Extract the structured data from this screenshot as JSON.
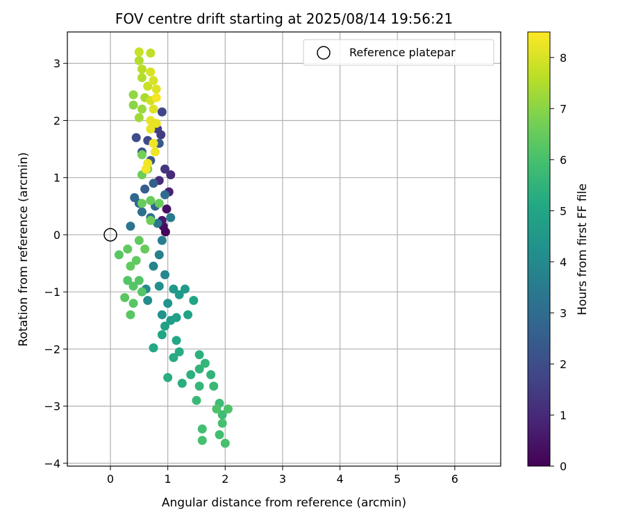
{
  "chart_data": {
    "type": "scatter",
    "title": "FOV centre drift starting at 2025/08/14 19:56:21",
    "xlabel": "Angular distance from reference (arcmin)",
    "ylabel": "Rotation from reference (arcmin)",
    "xlim": [
      -0.75,
      6.8
    ],
    "ylim": [
      -4.05,
      3.55
    ],
    "x_ticks": [
      0,
      1,
      2,
      3,
      4,
      5,
      6
    ],
    "y_ticks": [
      -4,
      -3,
      -2,
      -1,
      0,
      1,
      2,
      3
    ],
    "grid": true,
    "legend": {
      "placement": "upper-right",
      "entries": [
        {
          "label": "Reference platepar",
          "marker": "open-circle"
        }
      ]
    },
    "colorbar": {
      "label": "Hours from first FF file",
      "colormap": "viridis",
      "range": [
        0,
        8.5
      ],
      "ticks": [
        0,
        1,
        2,
        3,
        4,
        5,
        6,
        7,
        8
      ]
    },
    "reference_point": {
      "x": 0,
      "y": 0
    },
    "points": [
      {
        "x": 0.96,
        "y": 0.05,
        "h": 0.1
      },
      {
        "x": 0.92,
        "y": 0.15,
        "h": 0.3
      },
      {
        "x": 0.98,
        "y": 0.45,
        "h": 0.4
      },
      {
        "x": 0.9,
        "y": 0.25,
        "h": 0.6
      },
      {
        "x": 1.02,
        "y": 0.75,
        "h": 0.8
      },
      {
        "x": 1.05,
        "y": 1.05,
        "h": 1.0
      },
      {
        "x": 0.85,
        "y": 0.95,
        "h": 1.1
      },
      {
        "x": 0.95,
        "y": 1.15,
        "h": 1.3
      },
      {
        "x": 0.88,
        "y": 1.75,
        "h": 1.5
      },
      {
        "x": 0.82,
        "y": 1.85,
        "h": 1.6
      },
      {
        "x": 0.9,
        "y": 2.15,
        "h": 1.8
      },
      {
        "x": 0.65,
        "y": 1.65,
        "h": 1.9
      },
      {
        "x": 0.45,
        "y": 1.7,
        "h": 2.0
      },
      {
        "x": 0.55,
        "y": 1.45,
        "h": 2.2
      },
      {
        "x": 0.7,
        "y": 1.3,
        "h": 2.3
      },
      {
        "x": 0.85,
        "y": 1.6,
        "h": 2.4
      },
      {
        "x": 0.6,
        "y": 0.8,
        "h": 2.5
      },
      {
        "x": 0.75,
        "y": 0.9,
        "h": 2.6
      },
      {
        "x": 0.5,
        "y": 0.55,
        "h": 2.7
      },
      {
        "x": 0.78,
        "y": 0.5,
        "h": 2.8
      },
      {
        "x": 0.42,
        "y": 0.65,
        "h": 2.9
      },
      {
        "x": 0.95,
        "y": 0.7,
        "h": 3.0
      },
      {
        "x": 0.55,
        "y": 0.4,
        "h": 3.1
      },
      {
        "x": 0.7,
        "y": 0.3,
        "h": 3.2
      },
      {
        "x": 0.35,
        "y": 0.15,
        "h": 3.3
      },
      {
        "x": 0.82,
        "y": 0.2,
        "h": 3.4
      },
      {
        "x": 1.05,
        "y": 0.3,
        "h": 3.5
      },
      {
        "x": 0.9,
        "y": -0.1,
        "h": 3.6
      },
      {
        "x": 0.85,
        "y": -0.35,
        "h": 3.7
      },
      {
        "x": 0.75,
        "y": -0.55,
        "h": 3.8
      },
      {
        "x": 0.95,
        "y": -0.7,
        "h": 3.9
      },
      {
        "x": 0.62,
        "y": -0.95,
        "h": 4.0
      },
      {
        "x": 0.65,
        "y": -1.15,
        "h": 4.1
      },
      {
        "x": 0.85,
        "y": -0.9,
        "h": 4.2
      },
      {
        "x": 0.9,
        "y": -1.4,
        "h": 4.3
      },
      {
        "x": 1.0,
        "y": -1.2,
        "h": 4.4
      },
      {
        "x": 1.1,
        "y": -0.95,
        "h": 4.5
      },
      {
        "x": 1.2,
        "y": -1.05,
        "h": 4.6
      },
      {
        "x": 1.3,
        "y": -0.95,
        "h": 4.6
      },
      {
        "x": 1.05,
        "y": -1.5,
        "h": 4.7
      },
      {
        "x": 1.15,
        "y": -1.45,
        "h": 4.8
      },
      {
        "x": 0.95,
        "y": -1.6,
        "h": 4.8
      },
      {
        "x": 1.35,
        "y": -1.4,
        "h": 4.9
      },
      {
        "x": 1.45,
        "y": -1.15,
        "h": 5.0
      },
      {
        "x": 0.9,
        "y": -1.75,
        "h": 5.0
      },
      {
        "x": 1.15,
        "y": -1.85,
        "h": 5.1
      },
      {
        "x": 0.75,
        "y": -1.98,
        "h": 5.1
      },
      {
        "x": 1.2,
        "y": -2.05,
        "h": 5.2
      },
      {
        "x": 1.1,
        "y": -2.15,
        "h": 5.2
      },
      {
        "x": 1.0,
        "y": -2.5,
        "h": 5.3
      },
      {
        "x": 1.25,
        "y": -2.6,
        "h": 5.3
      },
      {
        "x": 1.4,
        "y": -2.45,
        "h": 5.4
      },
      {
        "x": 1.55,
        "y": -2.1,
        "h": 5.4
      },
      {
        "x": 1.55,
        "y": -2.35,
        "h": 5.5
      },
      {
        "x": 1.75,
        "y": -2.45,
        "h": 5.5
      },
      {
        "x": 1.55,
        "y": -2.65,
        "h": 5.6
      },
      {
        "x": 1.65,
        "y": -2.25,
        "h": 5.6
      },
      {
        "x": 1.5,
        "y": -2.9,
        "h": 5.7
      },
      {
        "x": 1.8,
        "y": -2.65,
        "h": 5.7
      },
      {
        "x": 1.9,
        "y": -2.95,
        "h": 5.8
      },
      {
        "x": 1.95,
        "y": -3.15,
        "h": 5.8
      },
      {
        "x": 1.6,
        "y": -3.4,
        "h": 5.9
      },
      {
        "x": 1.9,
        "y": -3.5,
        "h": 5.9
      },
      {
        "x": 1.6,
        "y": -3.6,
        "h": 6.0
      },
      {
        "x": 2.0,
        "y": -3.65,
        "h": 6.0
      },
      {
        "x": 1.95,
        "y": -3.3,
        "h": 6.0
      },
      {
        "x": 2.05,
        "y": -3.05,
        "h": 6.1
      },
      {
        "x": 1.85,
        "y": -3.05,
        "h": 6.1
      },
      {
        "x": 0.5,
        "y": -0.8,
        "h": 6.2
      },
      {
        "x": 0.3,
        "y": -0.8,
        "h": 6.2
      },
      {
        "x": 0.4,
        "y": -0.9,
        "h": 6.2
      },
      {
        "x": 0.55,
        "y": -1.0,
        "h": 6.2
      },
      {
        "x": 0.25,
        "y": -1.1,
        "h": 6.3
      },
      {
        "x": 0.4,
        "y": -1.2,
        "h": 6.3
      },
      {
        "x": 0.35,
        "y": -1.4,
        "h": 6.3
      },
      {
        "x": 0.15,
        "y": -0.35,
        "h": 6.3
      },
      {
        "x": 0.3,
        "y": -0.25,
        "h": 6.4
      },
      {
        "x": 0.5,
        "y": -0.1,
        "h": 6.4
      },
      {
        "x": 0.35,
        "y": -0.55,
        "h": 6.4
      },
      {
        "x": 0.45,
        "y": -0.45,
        "h": 6.4
      },
      {
        "x": 0.6,
        "y": -0.25,
        "h": 6.5
      },
      {
        "x": 0.7,
        "y": 0.6,
        "h": 6.5
      },
      {
        "x": 0.55,
        "y": 0.55,
        "h": 6.5
      },
      {
        "x": 0.85,
        "y": 0.55,
        "h": 6.5
      },
      {
        "x": 0.7,
        "y": 0.25,
        "h": 6.6
      },
      {
        "x": 0.55,
        "y": 1.05,
        "h": 6.6
      },
      {
        "x": 0.55,
        "y": 1.4,
        "h": 6.7
      },
      {
        "x": 0.65,
        "y": 1.15,
        "h": 6.7
      },
      {
        "x": 0.4,
        "y": 2.27,
        "h": 7.0
      },
      {
        "x": 0.4,
        "y": 2.45,
        "h": 7.1
      },
      {
        "x": 0.55,
        "y": 2.2,
        "h": 7.2
      },
      {
        "x": 0.5,
        "y": 2.05,
        "h": 7.3
      },
      {
        "x": 0.6,
        "y": 2.4,
        "h": 7.4
      },
      {
        "x": 0.55,
        "y": 2.75,
        "h": 7.5
      },
      {
        "x": 0.5,
        "y": 3.05,
        "h": 7.5
      },
      {
        "x": 0.55,
        "y": 2.9,
        "h": 7.6
      },
      {
        "x": 0.7,
        "y": 3.18,
        "h": 7.7
      },
      {
        "x": 0.5,
        "y": 3.2,
        "h": 7.8
      },
      {
        "x": 0.65,
        "y": 2.6,
        "h": 7.8
      },
      {
        "x": 0.7,
        "y": 2.35,
        "h": 7.9
      },
      {
        "x": 0.7,
        "y": 2.85,
        "h": 8.0
      },
      {
        "x": 0.75,
        "y": 2.7,
        "h": 8.0
      },
      {
        "x": 0.8,
        "y": 2.55,
        "h": 8.1
      },
      {
        "x": 0.75,
        "y": 2.2,
        "h": 8.1
      },
      {
        "x": 0.7,
        "y": 2.0,
        "h": 8.2
      },
      {
        "x": 0.8,
        "y": 1.95,
        "h": 8.2
      },
      {
        "x": 0.7,
        "y": 1.85,
        "h": 8.2
      },
      {
        "x": 0.75,
        "y": 1.6,
        "h": 8.3
      },
      {
        "x": 0.78,
        "y": 1.45,
        "h": 8.3
      },
      {
        "x": 0.65,
        "y": 1.25,
        "h": 8.3
      },
      {
        "x": 0.62,
        "y": 1.15,
        "h": 8.4
      },
      {
        "x": 0.8,
        "y": 2.4,
        "h": 8.4
      }
    ]
  }
}
